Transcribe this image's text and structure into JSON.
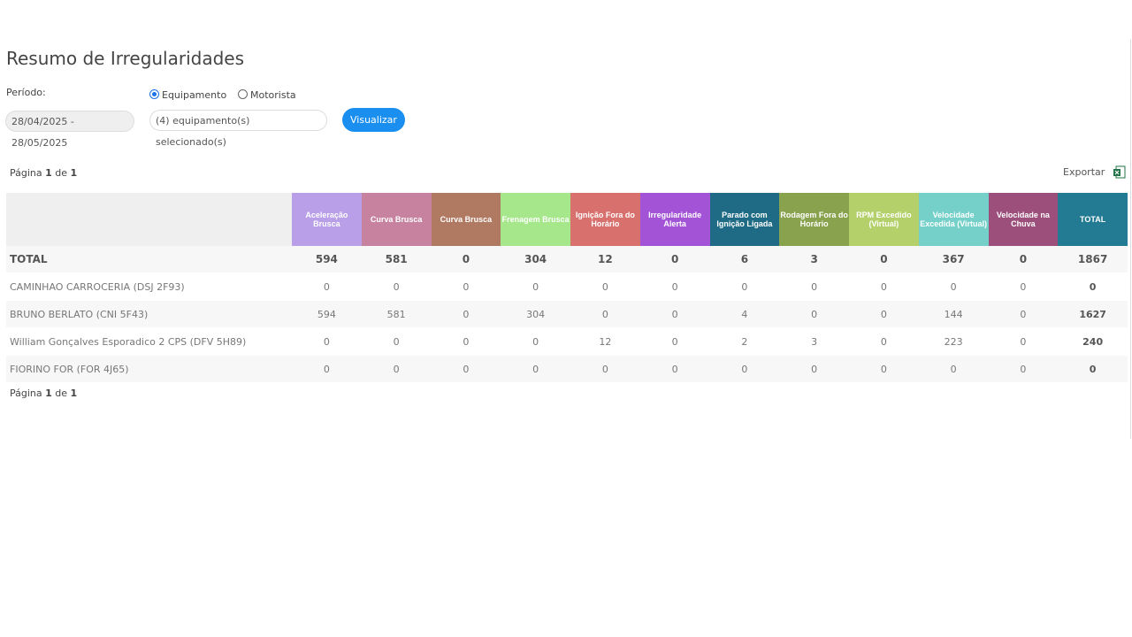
{
  "header": {
    "title": "Resumo de Irregularidades"
  },
  "filters": {
    "period_label": "Período:",
    "radio_equipment": "Equipamento",
    "radio_driver": "Motorista",
    "period_value": "28/04/2025 - 28/05/2025",
    "selection": "(4) equipamento(s) selecionado(s)",
    "button": "Visualizar"
  },
  "pagination": {
    "prefix": "Página",
    "page": "1",
    "sep": "de",
    "total": "1"
  },
  "export": "Exportar",
  "table": {
    "headers": [
      "Aceleração Brusca",
      "Curva Brusca",
      "Curva Brusca",
      "Frenagem Brusca",
      "Ignição Fora do Horário",
      "Irregularidade Alerta",
      "Parado com Ignição Ligada",
      "Rodagem Fora do Horário",
      "RPM Excedido (Virtual)",
      "Velocidade Excedida (Virtual)",
      "Velocidade na Chuva",
      "TOTAL"
    ],
    "header_colors": [
      "#b99ee8",
      "#c7829f",
      "#b07a62",
      "#a5e78a",
      "#d8706e",
      "#a354d6",
      "#1f6b86",
      "#89a24e",
      "#b3d06a",
      "#74d0c9",
      "#9c4f7b",
      "#237a93"
    ],
    "total_row": {
      "label": "TOTAL",
      "values": [
        594,
        581,
        0,
        304,
        12,
        0,
        6,
        3,
        0,
        367,
        0,
        1867
      ]
    },
    "rows": [
      {
        "label": "CAMINHAO CARROCERIA (DSJ 2F93)",
        "values": [
          0,
          0,
          0,
          0,
          0,
          0,
          0,
          0,
          0,
          0,
          0,
          0
        ]
      },
      {
        "label": "BRUNO BERLATO (CNI 5F43)",
        "values": [
          594,
          581,
          0,
          304,
          0,
          0,
          4,
          0,
          0,
          144,
          0,
          1627
        ]
      },
      {
        "label": "William Gonçalves Esporadico 2 CPS (DFV 5H89)",
        "values": [
          0,
          0,
          0,
          0,
          12,
          0,
          2,
          3,
          0,
          223,
          0,
          240
        ]
      },
      {
        "label": "FIORINO FOR (FOR 4J65)",
        "values": [
          0,
          0,
          0,
          0,
          0,
          0,
          0,
          0,
          0,
          0,
          0,
          0
        ]
      }
    ]
  }
}
